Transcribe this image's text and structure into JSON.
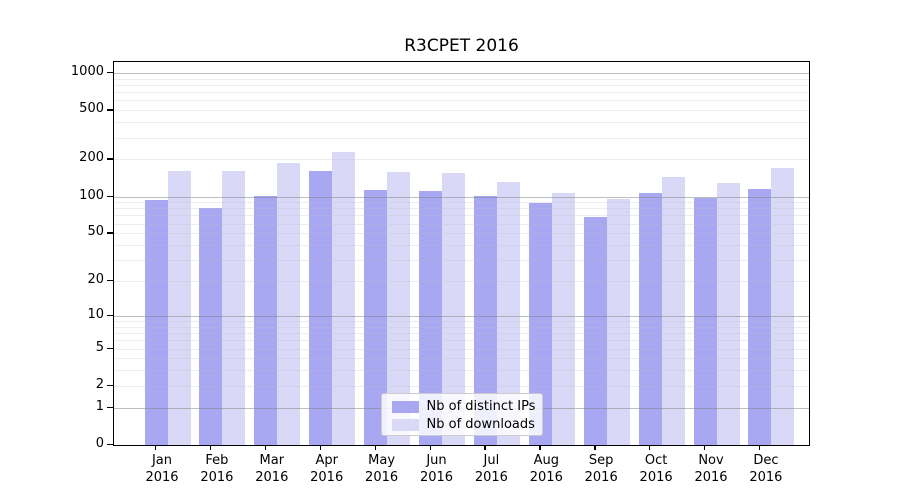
{
  "chart_data": {
    "type": "bar",
    "title": "R3CPET 2016",
    "categories": [
      "Jan 2016",
      "Feb 2016",
      "Mar 2016",
      "Apr 2016",
      "May 2016",
      "Jun 2016",
      "Jul 2016",
      "Aug 2016",
      "Sep 2016",
      "Oct 2016",
      "Nov 2016",
      "Dec 2016"
    ],
    "series": [
      {
        "name": "Nb of distinct IPs",
        "color": "#a8a8f2",
        "values": [
          94,
          81,
          100,
          160,
          113,
          110,
          100,
          88,
          68,
          106,
          97,
          114
        ]
      },
      {
        "name": "Nb of downloads",
        "color": "#d9d9f7",
        "values": [
          161,
          161,
          188,
          230,
          157,
          155,
          132,
          107,
          95,
          145,
          129,
          171
        ]
      }
    ],
    "xlabel": "",
    "ylabel": "",
    "y_axis": {
      "scale": "log1p",
      "tick_values": [
        0,
        1,
        2,
        5,
        10,
        20,
        50,
        100,
        200,
        500,
        1000
      ],
      "tick_labels": [
        "0",
        "1",
        "2",
        "5",
        "10",
        "20",
        "50",
        "100",
        "200",
        "500",
        "1000"
      ],
      "range": [
        0,
        1250
      ]
    },
    "grid": {
      "on": true,
      "major_lines": [
        1,
        10,
        100,
        1000
      ],
      "minor_lines": [
        2,
        3,
        4,
        5,
        6,
        7,
        8,
        9,
        20,
        30,
        40,
        50,
        60,
        70,
        80,
        90,
        200,
        300,
        400,
        500,
        600,
        700,
        800,
        900
      ]
    },
    "legend": {
      "position": "lower center",
      "entries": [
        "Nb of distinct IPs",
        "Nb of downloads"
      ]
    }
  },
  "colors": {
    "series_ips": "#a8a8f2",
    "series_downloads": "#d9d9f7",
    "spine": "#000000",
    "grid_major": "#b4b4b4",
    "grid_minor": "#e9e9ee",
    "legend_border": "#cccccc",
    "background": "#ffffff"
  }
}
